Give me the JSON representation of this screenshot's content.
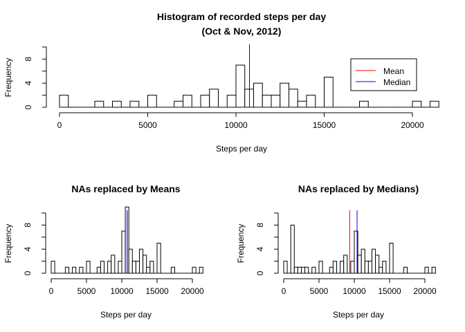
{
  "colors": {
    "mean": "#ff0000",
    "median": "#0000ff",
    "bar_fill": "#ffffff",
    "bar_stroke": "#000000"
  },
  "chart_data": [
    {
      "type": "bar",
      "title": "Histogram of recorded steps per day",
      "subtitle": "(Oct & Nov, 2012)",
      "xlabel": "Steps per day",
      "ylabel": "Frequency",
      "xlim": [
        0,
        22000
      ],
      "ylim": [
        0,
        10
      ],
      "xticks": [
        0,
        5000,
        10000,
        15000,
        20000
      ],
      "yticks": [
        0,
        4,
        8
      ],
      "bin_width": 500,
      "bin_start": 0,
      "counts": [
        2,
        0,
        0,
        0,
        1,
        0,
        1,
        0,
        1,
        0,
        2,
        0,
        0,
        1,
        2,
        0,
        2,
        3,
        0,
        2,
        7,
        3,
        4,
        2,
        2,
        4,
        3,
        1,
        2,
        0,
        5,
        0,
        0,
        0,
        1,
        0,
        0,
        0,
        0,
        0,
        1,
        0,
        1
      ],
      "mean": 10766,
      "median": 10765,
      "legend": {
        "placement": "top-right",
        "entries": [
          "Mean",
          "Median"
        ]
      }
    },
    {
      "type": "bar",
      "title": "NAs replaced by Means",
      "xlabel": "Steps per day",
      "ylabel": "Frequency",
      "xlim": [
        0,
        22000
      ],
      "ylim": [
        0,
        10
      ],
      "xticks": [
        0,
        5000,
        10000,
        15000,
        20000
      ],
      "yticks": [
        0,
        4,
        8
      ],
      "bin_width": 500,
      "bin_start": 0,
      "counts": [
        2,
        0,
        0,
        0,
        1,
        0,
        1,
        0,
        1,
        0,
        2,
        0,
        0,
        1,
        2,
        0,
        2,
        3,
        0,
        2,
        7,
        11,
        4,
        2,
        2,
        4,
        3,
        1,
        2,
        0,
        5,
        0,
        0,
        0,
        1,
        0,
        0,
        0,
        0,
        0,
        1,
        0,
        1
      ],
      "mean": 10766,
      "median": 10766
    },
    {
      "type": "bar",
      "title": "NAs replaced by Medians)",
      "xlabel": "Steps per day",
      "ylabel": "Frequency",
      "xlim": [
        0,
        22000
      ],
      "ylim": [
        0,
        10
      ],
      "xticks": [
        0,
        5000,
        10000,
        15000,
        20000
      ],
      "yticks": [
        0,
        4,
        8
      ],
      "bin_width": 500,
      "bin_start": 0,
      "counts": [
        2,
        0,
        8,
        1,
        1,
        1,
        1,
        0,
        1,
        0,
        2,
        0,
        0,
        1,
        2,
        0,
        2,
        3,
        0,
        2,
        7,
        3,
        4,
        2,
        2,
        4,
        3,
        1,
        2,
        0,
        5,
        0,
        0,
        0,
        1,
        0,
        0,
        0,
        0,
        0,
        1,
        0,
        1
      ],
      "mean": 9354,
      "median": 10395
    }
  ]
}
